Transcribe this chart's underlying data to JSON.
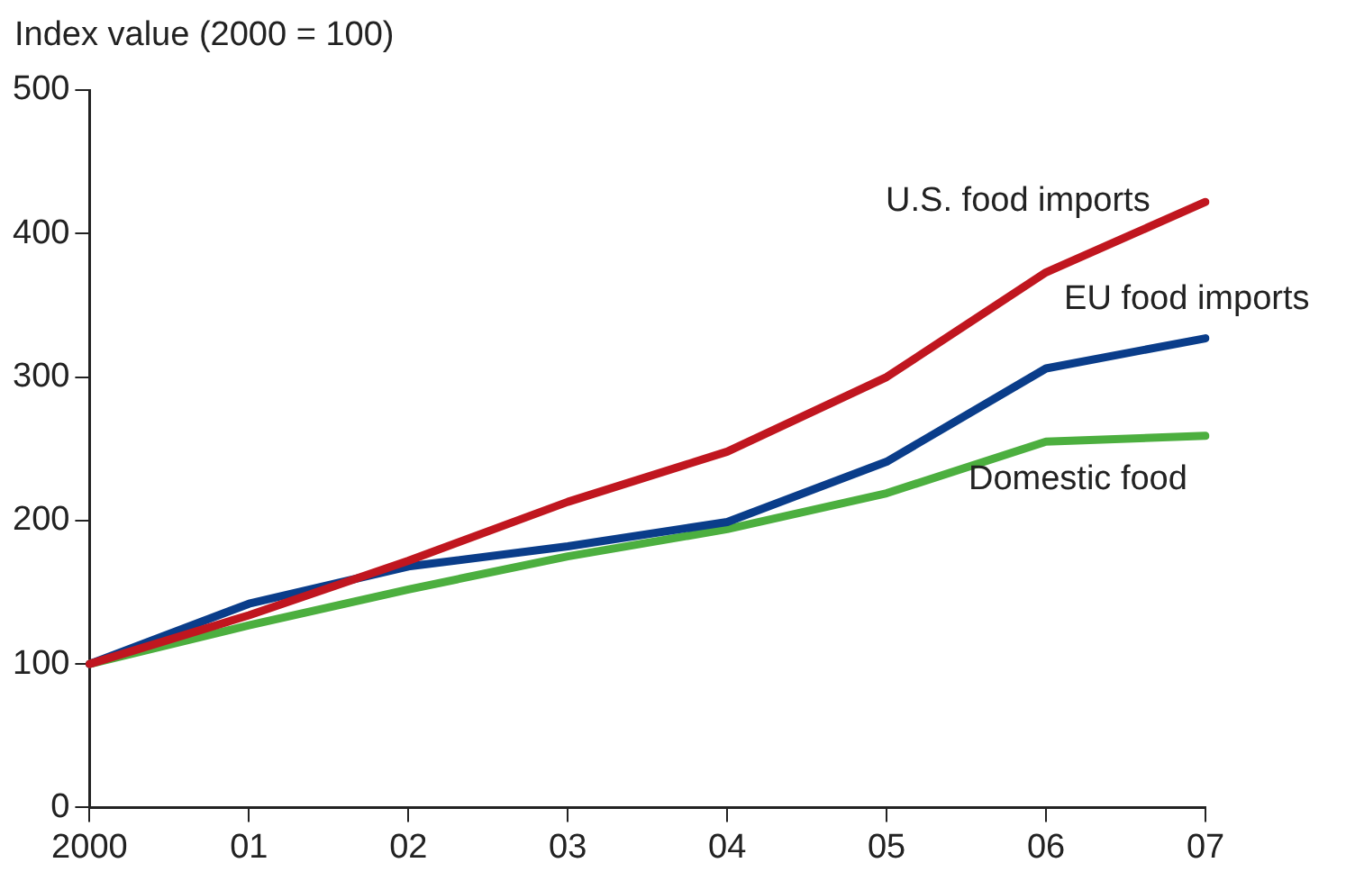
{
  "chart_data": {
    "type": "line",
    "ylabel": "Index value (2000 = 100)",
    "categories": [
      "2000",
      "01",
      "02",
      "03",
      "04",
      "05",
      "06",
      "07"
    ],
    "series": [
      {
        "name": "U.S. food imports",
        "color": "#c0161f",
        "values": [
          100,
          134,
          172,
          213,
          248,
          300,
          373,
          422
        ]
      },
      {
        "name": "EU food imports",
        "color": "#0a3d8a",
        "values": [
          100,
          142,
          168,
          182,
          199,
          241,
          306,
          327
        ]
      },
      {
        "name": "Domestic food",
        "color": "#4caf3f",
        "values": [
          100,
          127,
          152,
          175,
          194,
          219,
          255,
          259
        ]
      }
    ],
    "ylim": [
      0,
      500
    ],
    "yticks": [
      0,
      100,
      200,
      300,
      400,
      500
    ],
    "grid": false,
    "legend": false,
    "marker": "none",
    "line_style": "solid"
  }
}
